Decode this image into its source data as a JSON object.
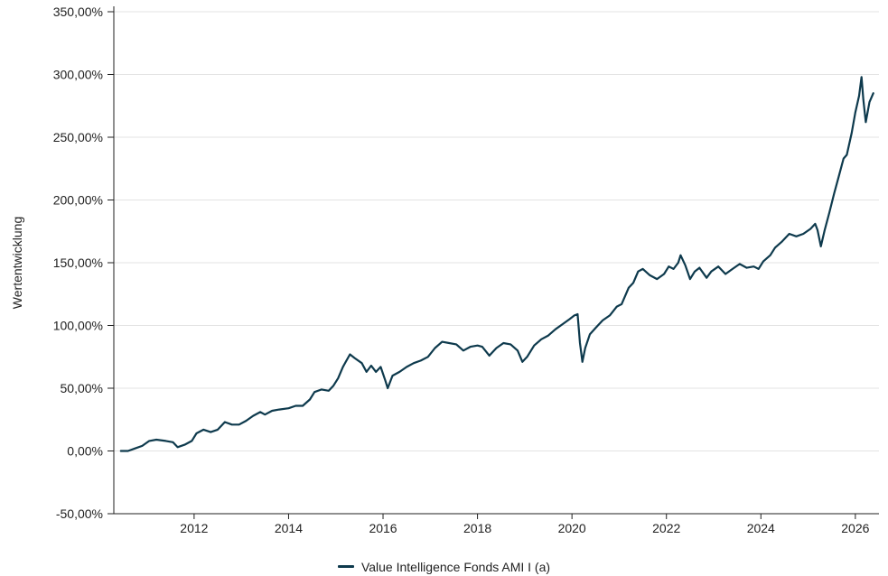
{
  "chart_data": {
    "type": "line",
    "ylabel": "Wertentwicklung",
    "xlabel": "",
    "ylim": [
      -50,
      350
    ],
    "xlim": [
      2010.3,
      2026.5
    ],
    "y_ticks": [
      "-50,00%",
      "0,00%",
      "50,00%",
      "100,00%",
      "150,00%",
      "200,00%",
      "250,00%",
      "300,00%",
      "350,00%"
    ],
    "y_tick_values": [
      -50,
      0,
      50,
      100,
      150,
      200,
      250,
      300,
      350
    ],
    "x_ticks": [
      "2012",
      "2014",
      "2016",
      "2018",
      "2020",
      "2022",
      "2024",
      "2026"
    ],
    "x_tick_values": [
      2012,
      2014,
      2016,
      2018,
      2020,
      2022,
      2024,
      2026
    ],
    "grid": "horizontal",
    "legend_position": "bottom-center",
    "series": [
      {
        "name": "Value Intelligence Fonds AMI I (a)",
        "color": "#0e3a4d",
        "points": [
          [
            2010.45,
            0
          ],
          [
            2010.6,
            0
          ],
          [
            2010.75,
            2
          ],
          [
            2010.9,
            4
          ],
          [
            2011.05,
            8
          ],
          [
            2011.2,
            9
          ],
          [
            2011.4,
            8
          ],
          [
            2011.55,
            7
          ],
          [
            2011.65,
            3
          ],
          [
            2011.8,
            5
          ],
          [
            2011.95,
            8
          ],
          [
            2012.05,
            14
          ],
          [
            2012.2,
            17
          ],
          [
            2012.35,
            15
          ],
          [
            2012.5,
            17
          ],
          [
            2012.65,
            23
          ],
          [
            2012.8,
            21
          ],
          [
            2012.95,
            21
          ],
          [
            2013.1,
            24
          ],
          [
            2013.25,
            28
          ],
          [
            2013.4,
            31
          ],
          [
            2013.5,
            29
          ],
          [
            2013.65,
            32
          ],
          [
            2013.8,
            33
          ],
          [
            2014.0,
            34
          ],
          [
            2014.15,
            36
          ],
          [
            2014.3,
            36
          ],
          [
            2014.45,
            41
          ],
          [
            2014.55,
            47
          ],
          [
            2014.7,
            49
          ],
          [
            2014.85,
            48
          ],
          [
            2014.95,
            52
          ],
          [
            2015.05,
            58
          ],
          [
            2015.15,
            67
          ],
          [
            2015.3,
            77
          ],
          [
            2015.4,
            74
          ],
          [
            2015.55,
            70
          ],
          [
            2015.65,
            63
          ],
          [
            2015.75,
            68
          ],
          [
            2015.85,
            63
          ],
          [
            2015.95,
            67
          ],
          [
            2016.05,
            56
          ],
          [
            2016.1,
            50
          ],
          [
            2016.2,
            60
          ],
          [
            2016.35,
            63
          ],
          [
            2016.5,
            67
          ],
          [
            2016.65,
            70
          ],
          [
            2016.8,
            72
          ],
          [
            2016.95,
            75
          ],
          [
            2017.1,
            82
          ],
          [
            2017.25,
            87
          ],
          [
            2017.4,
            86
          ],
          [
            2017.55,
            85
          ],
          [
            2017.7,
            80
          ],
          [
            2017.85,
            83
          ],
          [
            2018.0,
            84
          ],
          [
            2018.1,
            83
          ],
          [
            2018.25,
            76
          ],
          [
            2018.4,
            82
          ],
          [
            2018.55,
            86
          ],
          [
            2018.7,
            85
          ],
          [
            2018.85,
            80
          ],
          [
            2018.95,
            71
          ],
          [
            2019.05,
            75
          ],
          [
            2019.2,
            84
          ],
          [
            2019.35,
            89
          ],
          [
            2019.5,
            92
          ],
          [
            2019.65,
            97
          ],
          [
            2019.8,
            101
          ],
          [
            2019.95,
            105
          ],
          [
            2020.05,
            108
          ],
          [
            2020.12,
            109
          ],
          [
            2020.17,
            86
          ],
          [
            2020.22,
            71
          ],
          [
            2020.28,
            82
          ],
          [
            2020.38,
            93
          ],
          [
            2020.5,
            98
          ],
          [
            2020.65,
            104
          ],
          [
            2020.8,
            108
          ],
          [
            2020.95,
            115
          ],
          [
            2021.05,
            117
          ],
          [
            2021.2,
            130
          ],
          [
            2021.3,
            134
          ],
          [
            2021.4,
            143
          ],
          [
            2021.5,
            145
          ],
          [
            2021.65,
            140
          ],
          [
            2021.8,
            137
          ],
          [
            2021.95,
            141
          ],
          [
            2022.05,
            147
          ],
          [
            2022.15,
            145
          ],
          [
            2022.25,
            150
          ],
          [
            2022.3,
            156
          ],
          [
            2022.4,
            148
          ],
          [
            2022.5,
            137
          ],
          [
            2022.6,
            143
          ],
          [
            2022.7,
            146
          ],
          [
            2022.85,
            138
          ],
          [
            2022.95,
            143
          ],
          [
            2023.1,
            147
          ],
          [
            2023.25,
            141
          ],
          [
            2023.4,
            145
          ],
          [
            2023.55,
            149
          ],
          [
            2023.7,
            146
          ],
          [
            2023.85,
            147
          ],
          [
            2023.95,
            145
          ],
          [
            2024.05,
            151
          ],
          [
            2024.2,
            156
          ],
          [
            2024.3,
            162
          ],
          [
            2024.45,
            167
          ],
          [
            2024.6,
            173
          ],
          [
            2024.75,
            171
          ],
          [
            2024.9,
            173
          ],
          [
            2025.05,
            177
          ],
          [
            2025.15,
            181
          ],
          [
            2025.2,
            176
          ],
          [
            2025.27,
            163
          ],
          [
            2025.35,
            176
          ],
          [
            2025.45,
            190
          ],
          [
            2025.55,
            205
          ],
          [
            2025.65,
            219
          ],
          [
            2025.75,
            233
          ],
          [
            2025.82,
            236
          ],
          [
            2025.92,
            253
          ],
          [
            2026.0,
            270
          ],
          [
            2026.08,
            283
          ],
          [
            2026.13,
            298
          ],
          [
            2026.17,
            280
          ],
          [
            2026.22,
            262
          ],
          [
            2026.3,
            278
          ],
          [
            2026.38,
            285
          ]
        ]
      }
    ]
  }
}
